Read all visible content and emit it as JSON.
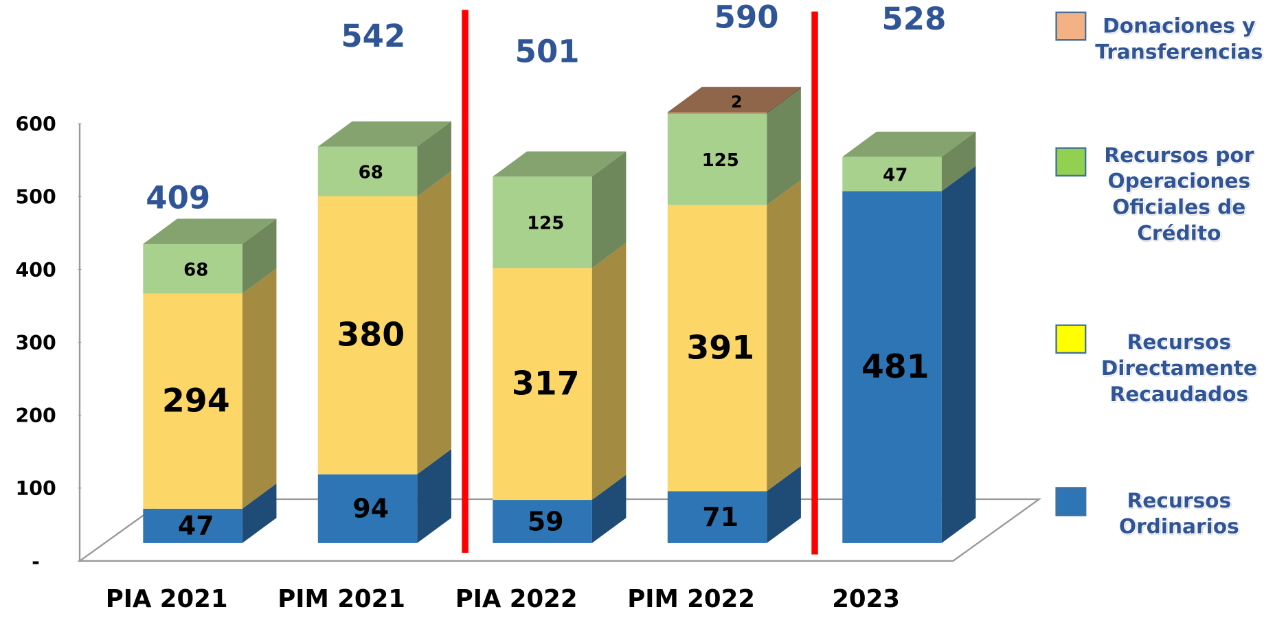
{
  "chart_data": {
    "type": "bar3d_stacked",
    "categories": [
      "PIA 2021",
      "PIM 2021",
      "PIA 2022",
      "PIM 2022",
      "2023"
    ],
    "series": [
      {
        "name": "Recursos Ordinarios",
        "color": "#2e75b6",
        "legend_color": "#2e75b6",
        "values": [
          47,
          94,
          59,
          71,
          481
        ]
      },
      {
        "name": "Recursos Directamente Recaudados",
        "color": "#fcd666",
        "legend_color": "#ffff00",
        "values": [
          294,
          380,
          317,
          391,
          null
        ]
      },
      {
        "name": "Recursos por Operaciones Oficiales de Crédito",
        "color": "#a9d18e",
        "legend_color": "#92d050",
        "values": [
          68,
          68,
          125,
          125,
          47
        ]
      },
      {
        "name": "Donaciones y Transferencias",
        "color": "#b7835f",
        "legend_color": "#f4b183",
        "values": [
          null,
          null,
          null,
          2,
          null
        ]
      }
    ],
    "totals": [
      409,
      542,
      501,
      590,
      528
    ],
    "ylim": [
      0,
      600
    ],
    "yticks": [
      {
        "value": 0,
        "label": "-"
      },
      100,
      200,
      300,
      400,
      500,
      600
    ],
    "legend": "right"
  }
}
